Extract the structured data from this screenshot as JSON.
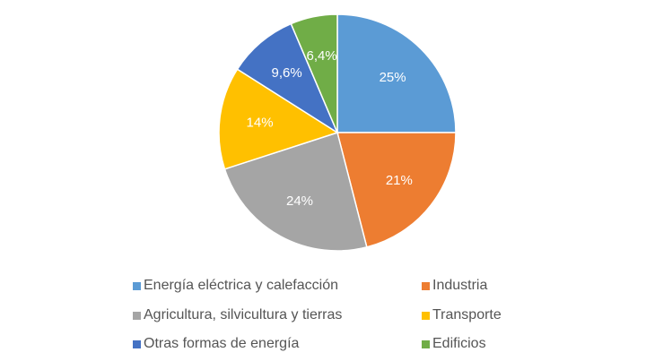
{
  "chart_data": {
    "type": "pie",
    "title": "",
    "slices": [
      {
        "name": "Energía eléctrica y calefacción",
        "value": 25,
        "label": "25%",
        "color": "#5b9bd5"
      },
      {
        "name": "Industria",
        "value": 21,
        "label": "21%",
        "color": "#ed7d31"
      },
      {
        "name": "Agricultura, silvicultura y tierras",
        "value": 24,
        "label": "24%",
        "color": "#a5a5a5"
      },
      {
        "name": "Transporte",
        "value": 14,
        "label": "14%",
        "color": "#ffc000"
      },
      {
        "name": "Otras formas de energía",
        "value": 9.6,
        "label": "9,6%",
        "color": "#4472c4"
      },
      {
        "name": "Edificios",
        "value": 6.4,
        "label": "6,4%",
        "color": "#70ad47"
      }
    ],
    "start_angle": "12 o'clock",
    "direction": "clockwise",
    "legend_position": "bottom",
    "legend_order": [
      0,
      1,
      2,
      3,
      4,
      5
    ]
  }
}
